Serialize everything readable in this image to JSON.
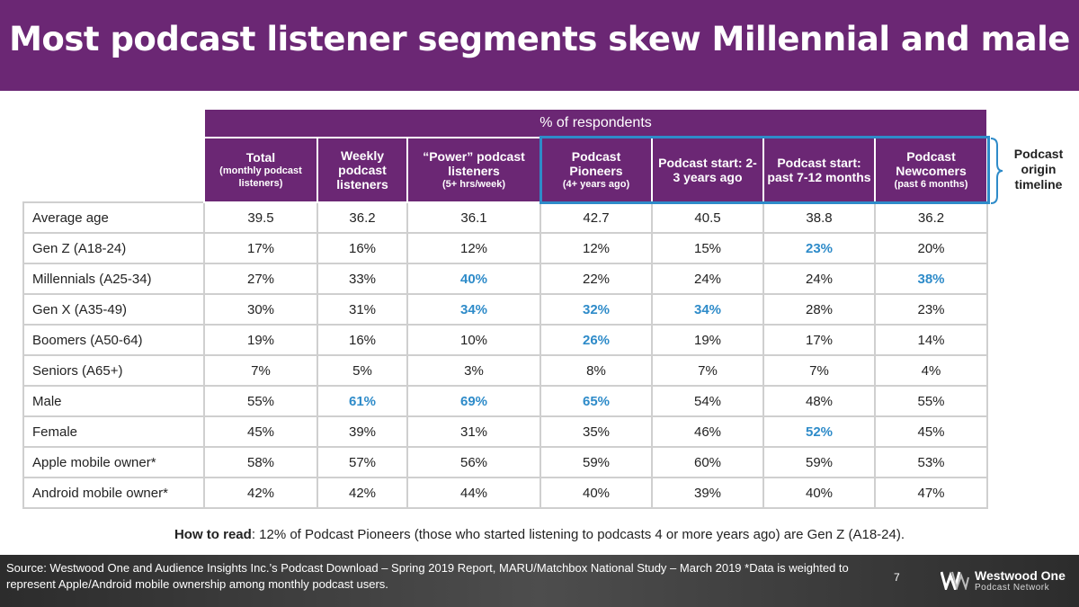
{
  "title": "Most podcast listener segments skew Millennial and male",
  "table": {
    "group_header": "% of respondents",
    "columns": [
      {
        "main": "Total",
        "sub": "(monthly podcast listeners)"
      },
      {
        "main": "Weekly podcast listeners",
        "sub": ""
      },
      {
        "main": "“Power” podcast listeners",
        "sub": "(5+ hrs/week)"
      },
      {
        "main": "Podcast Pioneers",
        "sub": "(4+ years ago)"
      },
      {
        "main": "Podcast start: 2-3 years ago",
        "sub": ""
      },
      {
        "main": "Podcast start: past 7-12 months",
        "sub": ""
      },
      {
        "main": "Podcast Newcomers",
        "sub": "(past 6 months)"
      }
    ],
    "rows": [
      {
        "label": "Average age",
        "values": [
          "39.5",
          "36.2",
          "36.1",
          "42.7",
          "40.5",
          "38.8",
          "36.2"
        ],
        "highlight": []
      },
      {
        "label": "Gen Z (A18-24)",
        "values": [
          "17%",
          "16%",
          "12%",
          "12%",
          "15%",
          "23%",
          "20%"
        ],
        "highlight": [
          5
        ]
      },
      {
        "label": "Millennials (A25-34)",
        "values": [
          "27%",
          "33%",
          "40%",
          "22%",
          "24%",
          "24%",
          "38%"
        ],
        "highlight": [
          2,
          6
        ]
      },
      {
        "label": "Gen X (A35-49)",
        "values": [
          "30%",
          "31%",
          "34%",
          "32%",
          "34%",
          "28%",
          "23%"
        ],
        "highlight": [
          2,
          3,
          4
        ]
      },
      {
        "label": "Boomers (A50-64)",
        "values": [
          "19%",
          "16%",
          "10%",
          "26%",
          "19%",
          "17%",
          "14%"
        ],
        "highlight": [
          3
        ]
      },
      {
        "label": "Seniors (A65+)",
        "values": [
          "7%",
          "5%",
          "3%",
          "8%",
          "7%",
          "7%",
          "4%"
        ],
        "highlight": []
      },
      {
        "label": "Male",
        "values": [
          "55%",
          "61%",
          "69%",
          "65%",
          "54%",
          "48%",
          "55%"
        ],
        "highlight": [
          1,
          2,
          3
        ]
      },
      {
        "label": "Female",
        "values": [
          "45%",
          "39%",
          "31%",
          "35%",
          "46%",
          "52%",
          "45%"
        ],
        "highlight": [
          5
        ]
      },
      {
        "label": "Apple mobile owner*",
        "values": [
          "58%",
          "57%",
          "56%",
          "59%",
          "60%",
          "59%",
          "53%"
        ],
        "highlight": []
      },
      {
        "label": "Android mobile owner*",
        "values": [
          "42%",
          "42%",
          "44%",
          "40%",
          "39%",
          "40%",
          "47%"
        ],
        "highlight": []
      }
    ]
  },
  "origin_label": "Podcast origin timeline",
  "how_to_read": {
    "lead": "How to read",
    "text": ": 12% of Podcast Pioneers (those who started listening to podcasts 4 or more years ago) are Gen Z (A18-24)."
  },
  "footer": {
    "source": "Source: Westwood One and Audience Insights Inc.’s Podcast Download – Spring 2019 Report, MARU/Matchbox National Study – March 2019 *Data is weighted to represent Apple/Android mobile ownership among monthly podcast users.",
    "page_number": "7",
    "logo_line1": "Westwood One",
    "logo_line2": "Podcast Network"
  },
  "colors": {
    "accent": "#6b2774",
    "highlight": "#2e8bc9",
    "footer": "#3a3a3a"
  }
}
